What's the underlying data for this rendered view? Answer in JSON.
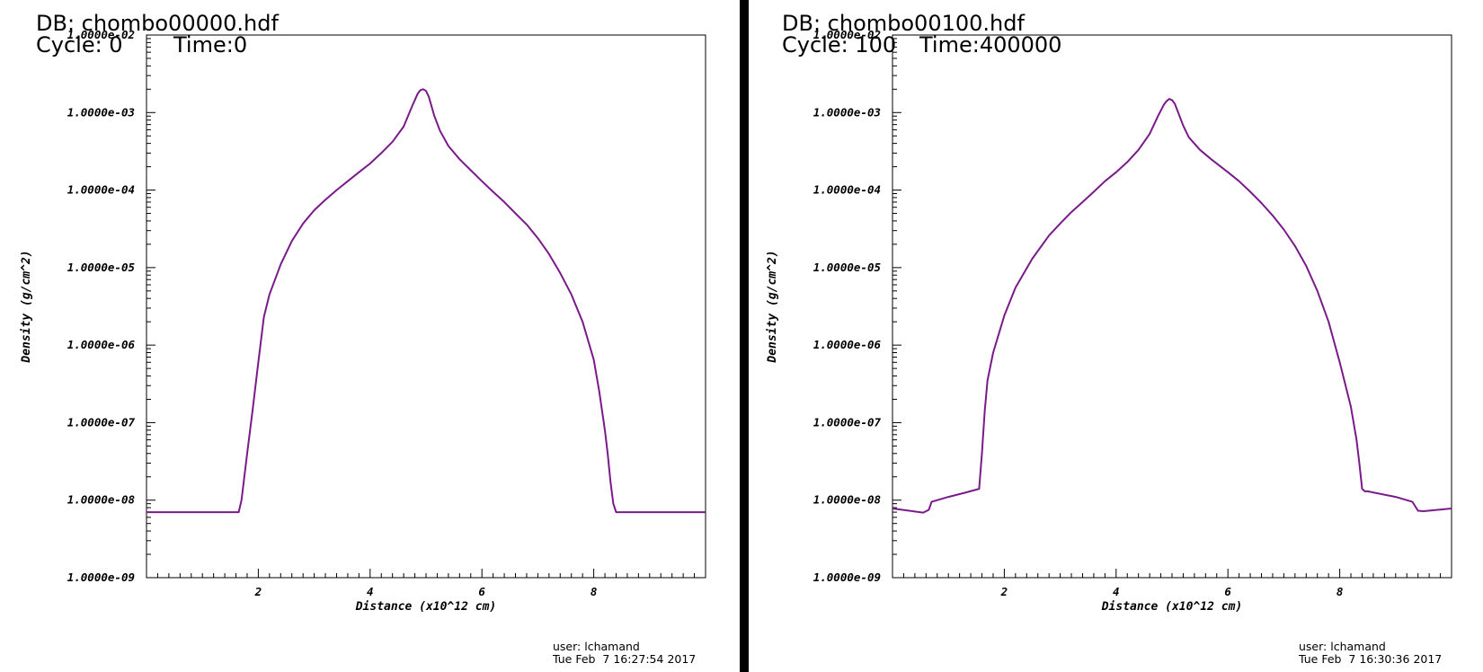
{
  "panels": [
    {
      "db_label": "DB: chombo00000.hdf",
      "cycle_label": "Cycle: 0",
      "time_label": "Time:0",
      "user_label": "user: lchamand",
      "date_label": "Tue Feb  7 16:27:54 2017"
    },
    {
      "db_label": "DB: chombo00100.hdf",
      "cycle_label": "Cycle: 100",
      "time_label": "Time:400000",
      "user_label": "user: lchamand",
      "date_label": "Tue Feb  7 16:30:36 2017"
    }
  ],
  "colors": {
    "curve": "#7a1a8a",
    "axes": "#000000",
    "divider": "#000000"
  },
  "chart_data": [
    {
      "type": "line",
      "title": "",
      "xlabel": "Distance (x10^12 cm)",
      "ylabel": "Density (g/cm^2)",
      "xlim": [
        0,
        10
      ],
      "ylim": [
        1e-09,
        0.01
      ],
      "y_scale": "log",
      "grid": false,
      "x_ticks": [
        2,
        4,
        6,
        8
      ],
      "x_tick_labels": [
        "2",
        "4",
        "6",
        "8"
      ],
      "y_ticks": [
        1e-09,
        1e-08,
        1e-07,
        1e-06,
        1e-05,
        0.0001,
        0.001,
        0.01
      ],
      "y_tick_labels": [
        "1.0000e-09",
        "1.0000e-08",
        "1.0000e-07",
        "1.0000e-06",
        "1.0000e-05",
        "1.0000e-04",
        "1.0000e-03",
        "1.0000e-02"
      ],
      "x": [
        0,
        0.5,
        1.0,
        1.5,
        1.65,
        1.7,
        1.8,
        1.9,
        2.0,
        2.1,
        2.2,
        2.4,
        2.6,
        2.8,
        3.0,
        3.2,
        3.4,
        3.6,
        3.8,
        4.0,
        4.2,
        4.4,
        4.6,
        4.75,
        4.85,
        4.9,
        4.95,
        5.0,
        5.05,
        5.1,
        5.15,
        5.25,
        5.4,
        5.6,
        5.8,
        6.0,
        6.2,
        6.4,
        6.6,
        6.8,
        7.0,
        7.2,
        7.4,
        7.6,
        7.8,
        8.0,
        8.1,
        8.2,
        8.25,
        8.3,
        8.35,
        8.4,
        8.5,
        9.0,
        9.5,
        10.0
      ],
      "y": [
        7e-09,
        7e-09,
        7e-09,
        7e-09,
        7e-09,
        1e-08,
        4e-08,
        1.5e-07,
        6e-07,
        2.3e-06,
        4.5e-06,
        1.1e-05,
        2.2e-05,
        3.7e-05,
        5.5e-05,
        7.5e-05,
        0.0001,
        0.00013,
        0.00017,
        0.00022,
        0.0003,
        0.00042,
        0.00066,
        0.0012,
        0.00175,
        0.00195,
        0.002,
        0.0019,
        0.0016,
        0.0012,
        0.0009,
        0.00058,
        0.00037,
        0.00025,
        0.00018,
        0.00013,
        9.5e-05,
        7e-05,
        5e-05,
        3.6e-05,
        2.4e-05,
        1.5e-05,
        8.5e-06,
        4.5e-06,
        2e-06,
        6.5e-07,
        2.5e-07,
        8e-08,
        4e-08,
        1.7e-08,
        9e-09,
        7e-09,
        7e-09,
        7e-09,
        7e-09,
        7e-09
      ]
    },
    {
      "type": "line",
      "title": "",
      "xlabel": "Distance (x10^12 cm)",
      "ylabel": "Density (g/cm^2)",
      "xlim": [
        0,
        10
      ],
      "ylim": [
        1e-09,
        0.01
      ],
      "y_scale": "log",
      "grid": false,
      "x_ticks": [
        2,
        4,
        6,
        8
      ],
      "x_tick_labels": [
        "2",
        "4",
        "6",
        "8"
      ],
      "y_ticks": [
        1e-09,
        1e-08,
        1e-07,
        1e-06,
        1e-05,
        0.0001,
        0.001,
        0.01
      ],
      "y_tick_labels": [
        "1.0000e-09",
        "1.0000e-08",
        "1.0000e-07",
        "1.0000e-06",
        "1.0000e-05",
        "1.0000e-04",
        "1.0000e-03",
        "1.0000e-02"
      ],
      "x": [
        0,
        0.3,
        0.55,
        0.65,
        0.7,
        1.0,
        1.3,
        1.55,
        1.6,
        1.65,
        1.7,
        1.8,
        2.0,
        2.2,
        2.5,
        2.8,
        3.0,
        3.2,
        3.4,
        3.6,
        3.8,
        4.0,
        4.2,
        4.4,
        4.6,
        4.75,
        4.85,
        4.9,
        4.95,
        5.0,
        5.05,
        5.1,
        5.2,
        5.3,
        5.5,
        5.7,
        6.0,
        6.2,
        6.4,
        6.6,
        6.8,
        7.0,
        7.2,
        7.4,
        7.6,
        7.8,
        8.0,
        8.2,
        8.3,
        8.35,
        8.4,
        8.45,
        8.5,
        9.0,
        9.3,
        9.4,
        9.5,
        10.0
      ],
      "y": [
        7.8e-09,
        7.3e-09,
        6.9e-09,
        7.5e-09,
        9.5e-09,
        1.1e-08,
        1.25e-08,
        1.4e-08,
        4e-08,
        1.4e-07,
        3.5e-07,
        8e-07,
        2.4e-06,
        5.5e-06,
        1.3e-05,
        2.6e-05,
        3.7e-05,
        5.2e-05,
        7e-05,
        9.5e-05,
        0.00013,
        0.00017,
        0.00023,
        0.00033,
        0.00053,
        0.0009,
        0.00125,
        0.0014,
        0.0015,
        0.00145,
        0.0013,
        0.00105,
        0.00068,
        0.00048,
        0.00033,
        0.00025,
        0.00017,
        0.00013,
        9.5e-05,
        6.8e-05,
        4.7e-05,
        3.1e-05,
        1.9e-05,
        1.05e-05,
        5e-06,
        2e-06,
        6e-07,
        1.6e-07,
        6e-08,
        3e-08,
        1.4e-08,
        1.3e-08,
        1.3e-08,
        1.1e-08,
        9.5e-09,
        7.3e-09,
        7.2e-09,
        7.8e-09
      ]
    }
  ]
}
